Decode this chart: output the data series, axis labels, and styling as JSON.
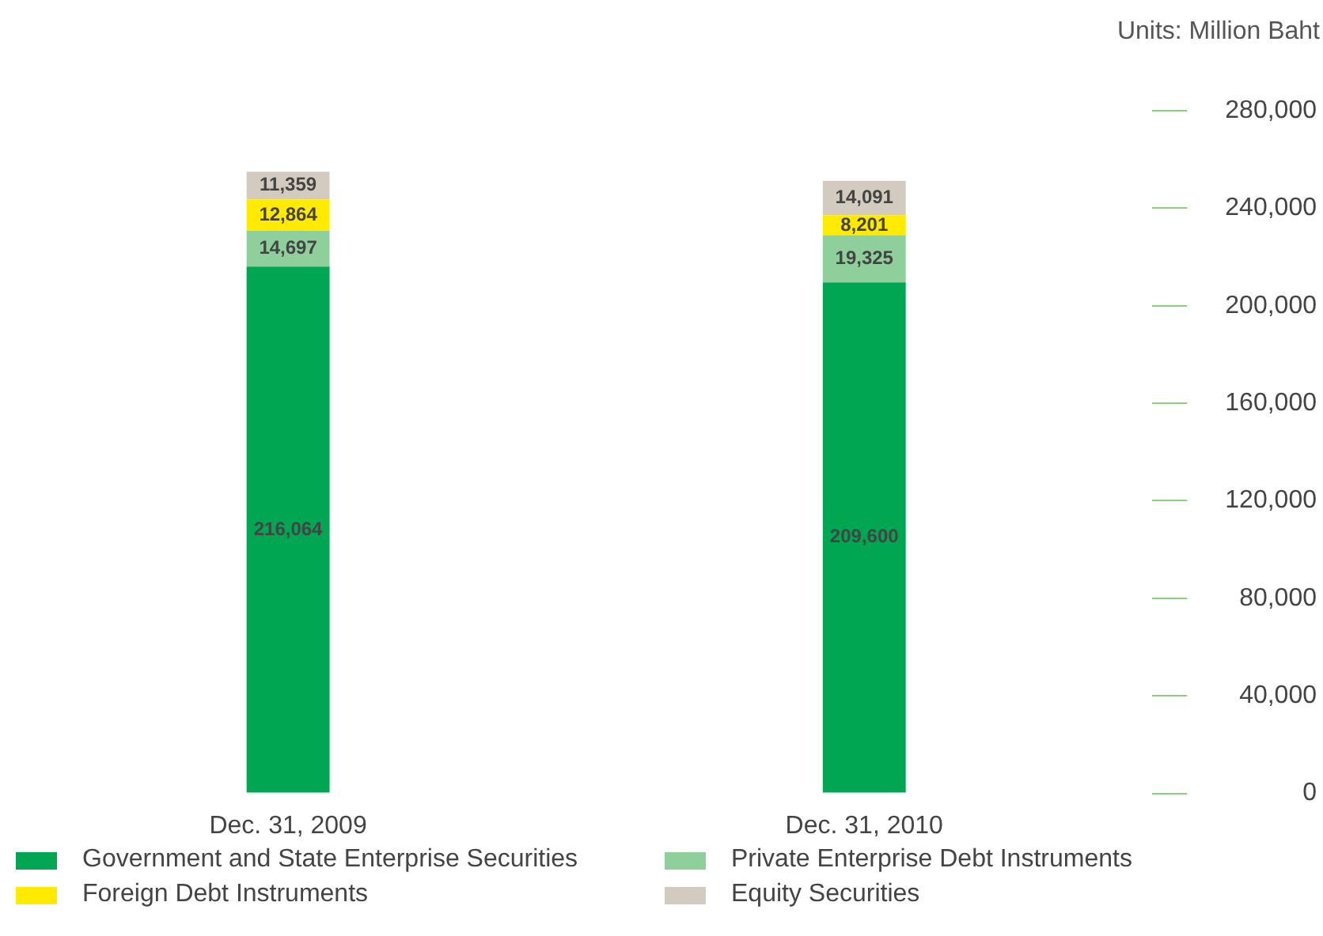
{
  "chart_data": {
    "type": "bar",
    "stacked": true,
    "ylabel": "Units: Million Baht",
    "categories": [
      "Dec. 31, 2009",
      "Dec. 31, 2010"
    ],
    "series": [
      {
        "name": "Government and State Enterprise Securities",
        "color": "#00a651",
        "values": [
          216064,
          209600
        ],
        "value_labels": [
          "216,064",
          "209,600"
        ]
      },
      {
        "name": "Private Enterprise Debt Instruments",
        "color": "#8fcf9c",
        "values": [
          14697,
          19325
        ],
        "value_labels": [
          "14,697",
          "19,325"
        ]
      },
      {
        "name": "Foreign Debt Instruments",
        "color": "#ffea00",
        "values": [
          12864,
          8201
        ],
        "value_labels": [
          "12,864",
          "8,201"
        ]
      },
      {
        "name": "Equity Securities",
        "color": "#d3cbbf",
        "values": [
          11359,
          14091
        ],
        "value_labels": [
          "11,359",
          "14,091"
        ]
      }
    ],
    "ylim": [
      0,
      280000
    ],
    "yticks": [
      0,
      {
        "value": 40000,
        "label": "40,000"
      },
      {
        "value": 80000,
        "label": "80,000"
      },
      {
        "value": 120000,
        "label": "120,000"
      },
      {
        "value": 160000,
        "label": "160,000"
      },
      {
        "value": 200000,
        "label": "200,000"
      },
      {
        "value": 240000,
        "label": "240,000"
      },
      {
        "value": 280000,
        "label": "280,000"
      }
    ],
    "legend": "bottom",
    "grid": false
  }
}
